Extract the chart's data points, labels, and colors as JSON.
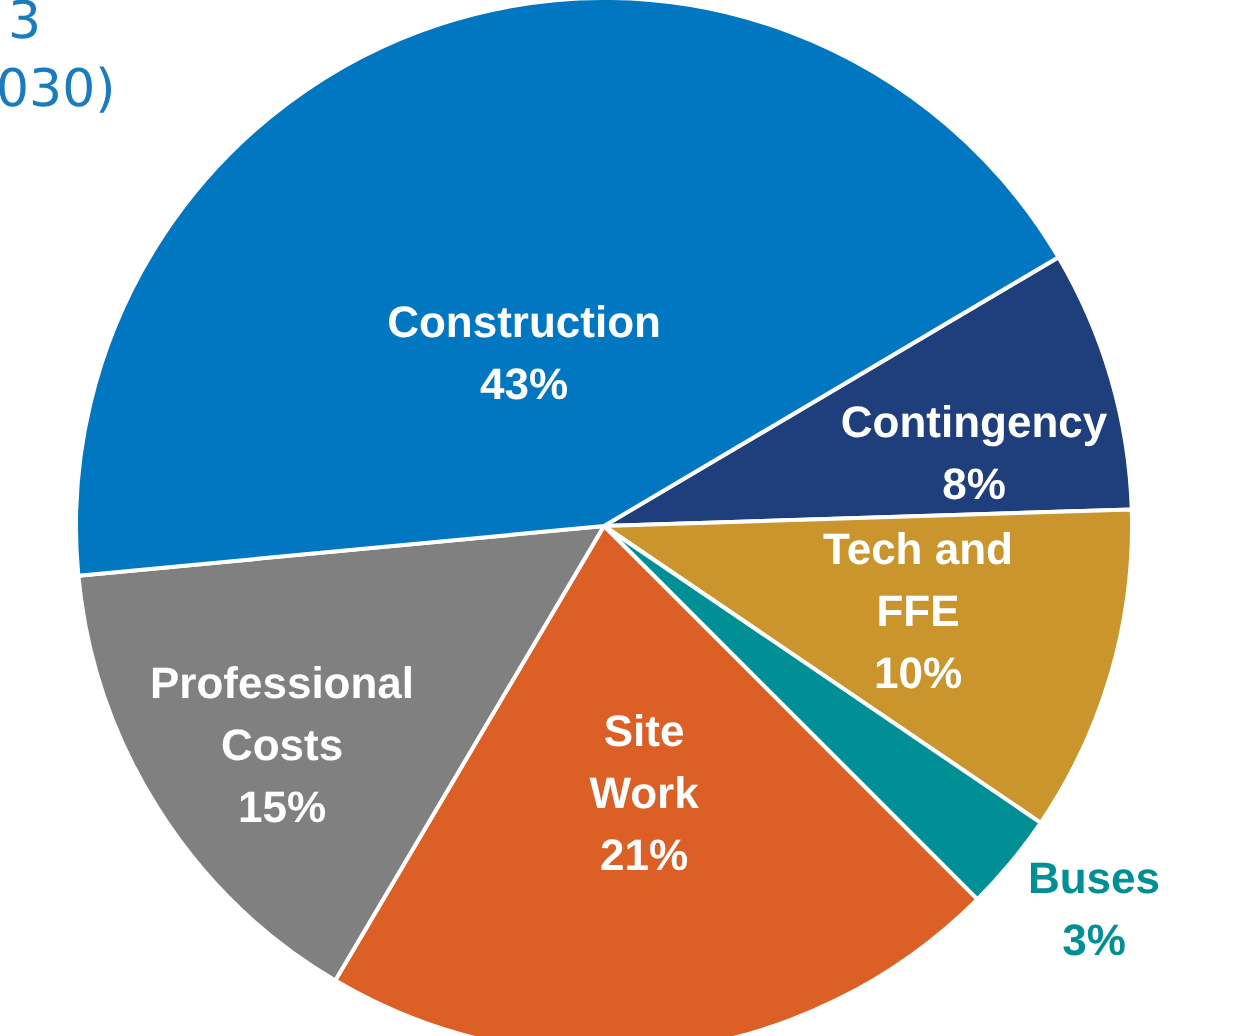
{
  "chart_data": {
    "type": "pie",
    "annotations": [
      "3",
      "030)"
    ],
    "categories": [
      "Contingency",
      "Tech and FFE",
      "Buses",
      "Site Work",
      "Professional Costs",
      "Construction"
    ],
    "values": [
      8,
      10,
      3,
      21,
      15,
      43
    ],
    "value_labels": [
      "8%",
      "10%",
      "3%",
      "21%",
      "15%",
      "43%"
    ],
    "colors": [
      "#1f3e7c",
      "#c9952c",
      "#008f94",
      "#dc6026",
      "#808080",
      "#0077c0"
    ],
    "legend": false
  }
}
